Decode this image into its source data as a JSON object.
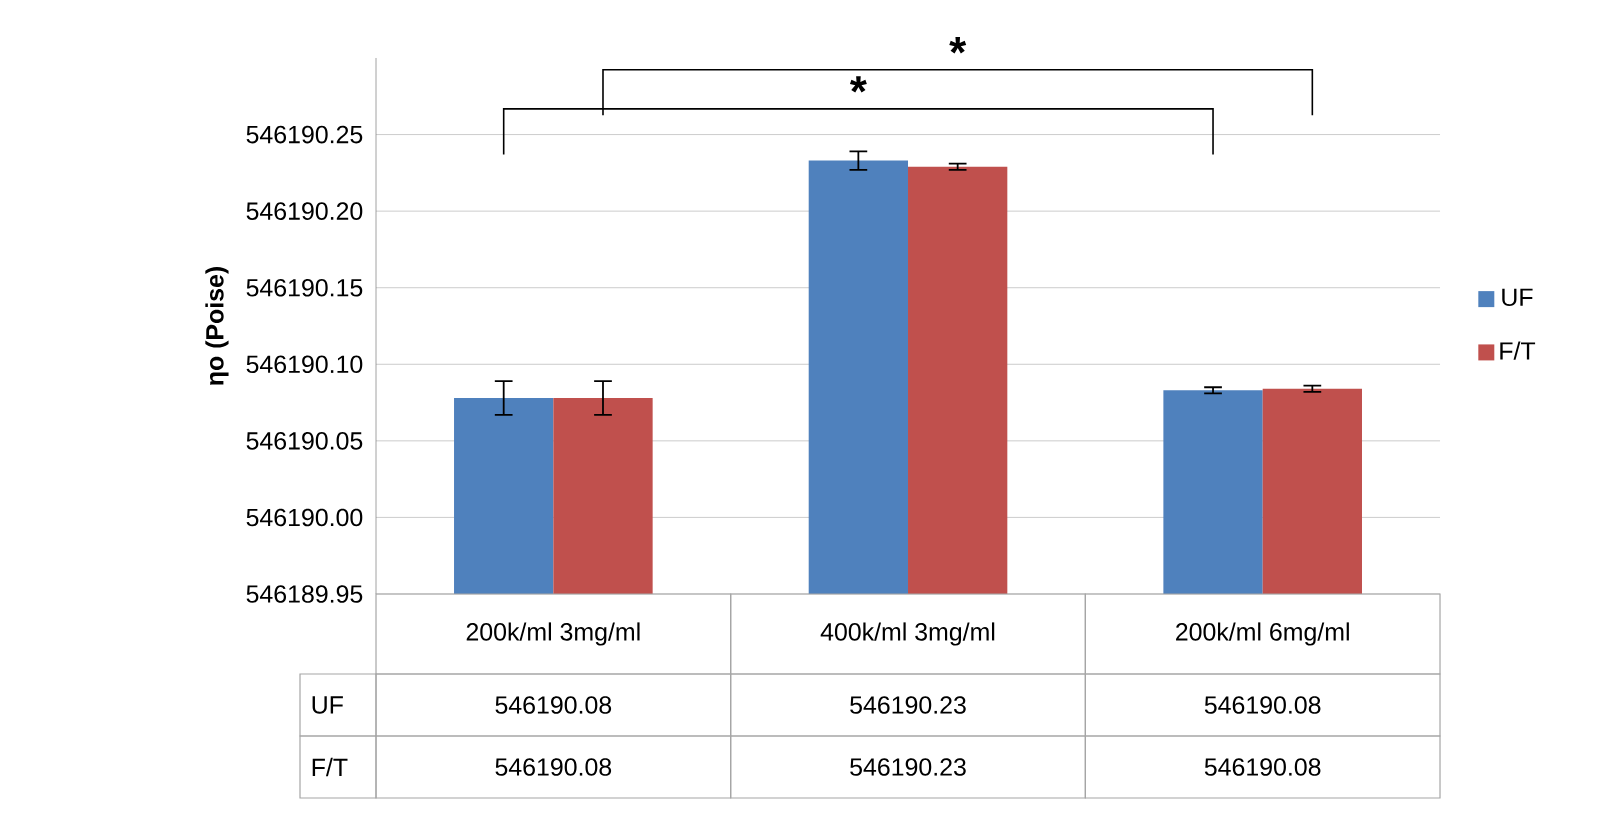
{
  "chart_data": {
    "type": "bar",
    "ylabel": "ηo (Poise)",
    "categories": [
      "200k/ml 3mg/ml",
      "400k/ml 3mg/ml",
      "200k/ml 6mg/ml"
    ],
    "series": [
      {
        "name": "UF",
        "color": "#4f81bd",
        "values": [
          546190.078,
          546190.233,
          546190.083
        ],
        "errors": [
          0.011,
          0.006,
          0.002
        ],
        "value_labels": [
          "546190.08",
          "546190.23",
          "546190.08"
        ]
      },
      {
        "name": "F/T",
        "color": "#c0504d",
        "values": [
          546190.078,
          546190.229,
          546190.084
        ],
        "errors": [
          0.011,
          0.002,
          0.002
        ],
        "value_labels": [
          "546190.08",
          "546190.23",
          "546190.08"
        ]
      }
    ],
    "ylim": [
      546189.95,
      546190.3
    ],
    "yticks": [
      {
        "value": 546189.95,
        "label": "546189.95"
      },
      {
        "value": 546190.0,
        "label": "546190.00"
      },
      {
        "value": 546190.05,
        "label": "546190.05"
      },
      {
        "value": 546190.1,
        "label": "546190.10"
      },
      {
        "value": 546190.15,
        "label": "546190.15"
      },
      {
        "value": 546190.2,
        "label": "546190.20"
      },
      {
        "value": 546190.25,
        "label": "546190.25"
      }
    ],
    "grid": "y",
    "legend": "right",
    "annotations": [
      "*",
      "*"
    ]
  }
}
